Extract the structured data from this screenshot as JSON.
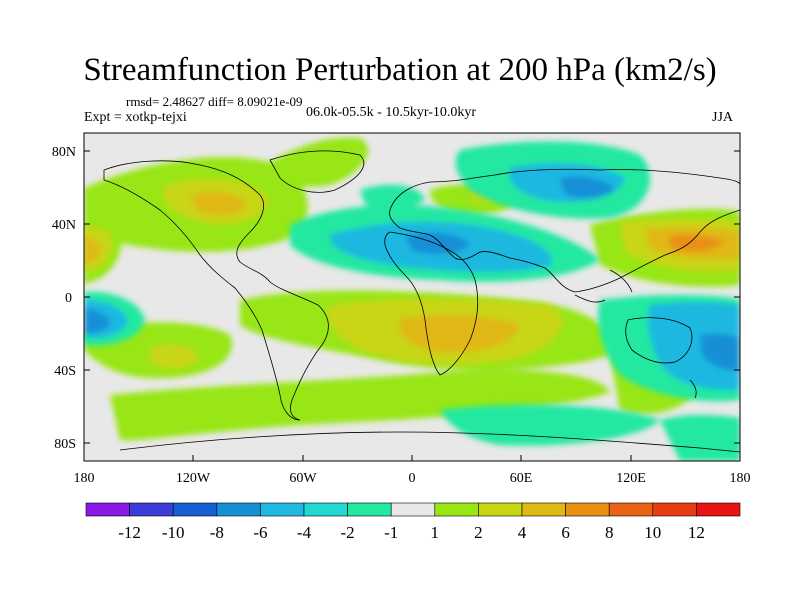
{
  "title": "Streamfunction Perturbation at 200 hPa (km2/s)",
  "stats": "rmsd= 2.48627 diff= 8.09021e-09",
  "expt": "Expt = xotkp-tejxi",
  "period": "06.0k-05.5k - 10.5kyr-10.0kyr",
  "season": "JJA",
  "axes": {
    "lat_ticks": [
      "80N",
      "40N",
      "0",
      "40S",
      "80S"
    ],
    "lon_ticks": [
      "180",
      "120W",
      "60W",
      "0",
      "60E",
      "120E",
      "180"
    ]
  },
  "colorbar": {
    "labels": [
      "-12",
      "-10",
      "-8",
      "-6",
      "-4",
      "-2",
      "-1",
      "1",
      "2",
      "4",
      "6",
      "8",
      "10",
      "12"
    ],
    "colors": [
      "#8a1ae6",
      "#3c3cd8",
      "#1560d0",
      "#158fd6",
      "#1fb8e0",
      "#22d8d0",
      "#22e8a0",
      "#e8e8e8",
      "#98e614",
      "#c8d614",
      "#e0b814",
      "#e89014",
      "#e86414",
      "#e83c14",
      "#e81414"
    ]
  },
  "colors": {
    "background": "#e8e8e8",
    "coastline": "#000000"
  }
}
